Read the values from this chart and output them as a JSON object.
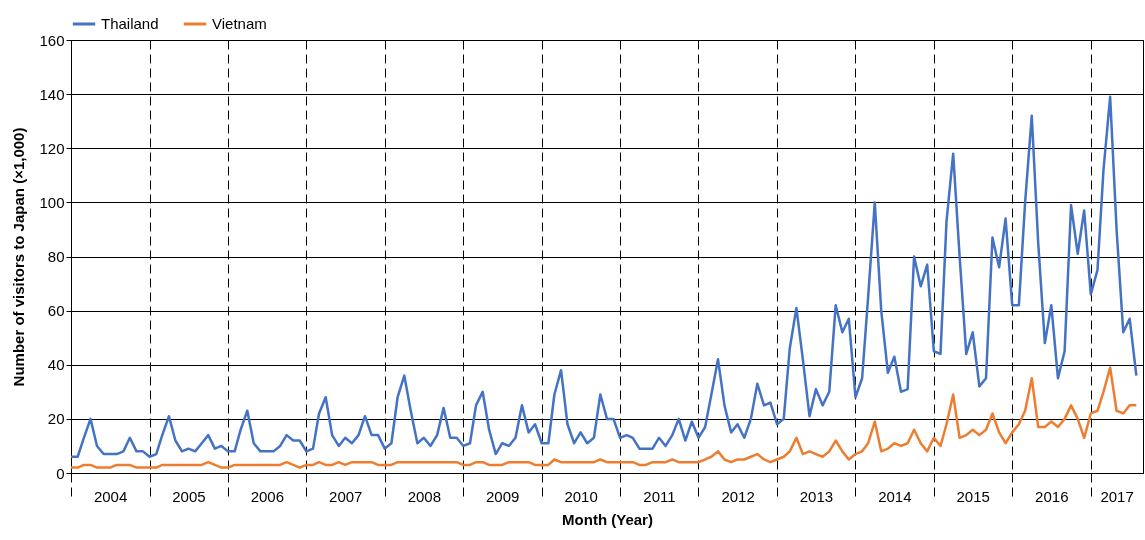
{
  "chart_data": {
    "type": "line",
    "xlabel": "Month (Year)",
    "ylabel": "Number of visitors to Japan (×1,000)",
    "x": [
      "2004-01",
      "2004-02",
      "2004-03",
      "2004-04",
      "2004-05",
      "2004-06",
      "2004-07",
      "2004-08",
      "2004-09",
      "2004-10",
      "2004-11",
      "2004-12",
      "2005-01",
      "2005-02",
      "2005-03",
      "2005-04",
      "2005-05",
      "2005-06",
      "2005-07",
      "2005-08",
      "2005-09",
      "2005-10",
      "2005-11",
      "2005-12",
      "2006-01",
      "2006-02",
      "2006-03",
      "2006-04",
      "2006-05",
      "2006-06",
      "2006-07",
      "2006-08",
      "2006-09",
      "2006-10",
      "2006-11",
      "2006-12",
      "2007-01",
      "2007-02",
      "2007-03",
      "2007-04",
      "2007-05",
      "2007-06",
      "2007-07",
      "2007-08",
      "2007-09",
      "2007-10",
      "2007-11",
      "2007-12",
      "2008-01",
      "2008-02",
      "2008-03",
      "2008-04",
      "2008-05",
      "2008-06",
      "2008-07",
      "2008-08",
      "2008-09",
      "2008-10",
      "2008-11",
      "2008-12",
      "2009-01",
      "2009-02",
      "2009-03",
      "2009-04",
      "2009-05",
      "2009-06",
      "2009-07",
      "2009-08",
      "2009-09",
      "2009-10",
      "2009-11",
      "2009-12",
      "2010-01",
      "2010-02",
      "2010-03",
      "2010-04",
      "2010-05",
      "2010-06",
      "2010-07",
      "2010-08",
      "2010-09",
      "2010-10",
      "2010-11",
      "2010-12",
      "2011-01",
      "2011-02",
      "2011-03",
      "2011-04",
      "2011-05",
      "2011-06",
      "2011-07",
      "2011-08",
      "2011-09",
      "2011-10",
      "2011-11",
      "2011-12",
      "2012-01",
      "2012-02",
      "2012-03",
      "2012-04",
      "2012-05",
      "2012-06",
      "2012-07",
      "2012-08",
      "2012-09",
      "2012-10",
      "2012-11",
      "2012-12",
      "2013-01",
      "2013-02",
      "2013-03",
      "2013-04",
      "2013-05",
      "2013-06",
      "2013-07",
      "2013-08",
      "2013-09",
      "2013-10",
      "2013-11",
      "2013-12",
      "2014-01",
      "2014-02",
      "2014-03",
      "2014-04",
      "2014-05",
      "2014-06",
      "2014-07",
      "2014-08",
      "2014-09",
      "2014-10",
      "2014-11",
      "2014-12",
      "2015-01",
      "2015-02",
      "2015-03",
      "2015-04",
      "2015-05",
      "2015-06",
      "2015-07",
      "2015-08",
      "2015-09",
      "2015-10",
      "2015-11",
      "2015-12",
      "2016-01",
      "2016-02",
      "2016-03",
      "2016-04",
      "2016-05",
      "2016-06",
      "2016-07",
      "2016-08",
      "2016-09",
      "2016-10",
      "2016-11",
      "2016-12",
      "2017-01",
      "2017-02",
      "2017-03",
      "2017-04",
      "2017-05",
      "2017-06",
      "2017-07",
      "2017-08"
    ],
    "series": [
      {
        "name": "Thailand",
        "color": "#4472c4",
        "values": [
          6,
          6,
          13,
          20,
          10,
          7,
          7,
          7,
          8,
          13,
          8,
          8,
          6,
          7,
          14,
          21,
          12,
          8,
          9,
          8,
          11,
          14,
          9,
          10,
          8,
          8,
          16,
          23,
          11,
          8,
          8,
          8,
          10,
          14,
          12,
          12,
          8,
          9,
          22,
          28,
          14,
          10,
          13,
          11,
          14,
          21,
          14,
          14,
          9,
          11,
          28,
          36,
          23,
          11,
          13,
          10,
          14,
          24,
          13,
          13,
          10,
          11,
          25,
          30,
          16,
          7,
          11,
          10,
          13,
          25,
          15,
          18,
          11,
          11,
          29,
          38,
          18,
          11,
          15,
          11,
          13,
          29,
          20,
          20,
          13,
          14,
          13,
          9,
          9,
          9,
          13,
          10,
          14,
          20,
          12,
          19,
          13,
          17,
          29,
          42,
          25,
          15,
          18,
          13,
          20,
          33,
          25,
          26,
          18,
          20,
          46,
          61,
          42,
          21,
          31,
          25,
          30,
          62,
          52,
          57,
          28,
          35,
          65,
          100,
          60,
          37,
          43,
          30,
          31,
          80,
          69,
          77,
          45,
          44,
          93,
          118,
          80,
          44,
          52,
          32,
          35,
          87,
          76,
          94,
          62,
          62,
          100,
          132,
          85,
          48,
          62,
          35,
          45,
          99,
          81,
          97,
          66,
          75,
          112,
          139,
          90,
          52,
          57,
          36
        ]
      },
      {
        "name": "Vietnam",
        "color": "#ed7d31",
        "values": [
          2,
          2,
          3,
          3,
          2,
          2,
          2,
          3,
          3,
          3,
          2,
          2,
          2,
          2,
          3,
          3,
          3,
          3,
          3,
          3,
          3,
          4,
          3,
          2,
          2,
          3,
          3,
          3,
          3,
          3,
          3,
          3,
          3,
          4,
          3,
          2,
          3,
          3,
          4,
          3,
          3,
          4,
          3,
          4,
          4,
          4,
          4,
          3,
          3,
          3,
          4,
          4,
          4,
          4,
          4,
          4,
          4,
          4,
          4,
          4,
          3,
          3,
          4,
          4,
          3,
          3,
          3,
          4,
          4,
          4,
          4,
          3,
          3,
          3,
          5,
          4,
          4,
          4,
          4,
          4,
          4,
          5,
          4,
          4,
          4,
          4,
          4,
          3,
          3,
          4,
          4,
          4,
          5,
          4,
          4,
          4,
          4,
          5,
          6,
          8,
          5,
          4,
          5,
          5,
          6,
          7,
          5,
          4,
          5,
          6,
          8,
          13,
          7,
          8,
          7,
          6,
          8,
          12,
          8,
          5,
          7,
          8,
          11,
          19,
          8,
          9,
          11,
          10,
          11,
          16,
          11,
          8,
          13,
          10,
          18,
          29,
          13,
          14,
          16,
          14,
          16,
          22,
          15,
          11,
          15,
          18,
          23,
          35,
          17,
          17,
          19,
          17,
          20,
          25,
          20,
          13,
          22,
          23,
          30,
          39,
          23,
          22,
          25,
          25
        ]
      }
    ],
    "xlim": [
      "2004-01",
      "2017-09"
    ],
    "xticks": [
      {
        "value": "2004-01",
        "label": null
      },
      {
        "value": "2004-07",
        "label": "2004"
      },
      {
        "value": "2005-01",
        "label": null
      },
      {
        "value": "2005-07",
        "label": "2005"
      },
      {
        "value": "2006-01",
        "label": null
      },
      {
        "value": "2006-07",
        "label": "2006"
      },
      {
        "value": "2007-01",
        "label": null
      },
      {
        "value": "2007-07",
        "label": "2007"
      },
      {
        "value": "2008-01",
        "label": null
      },
      {
        "value": "2008-07",
        "label": "2008"
      },
      {
        "value": "2009-01",
        "label": null
      },
      {
        "value": "2009-07",
        "label": "2009"
      },
      {
        "value": "2010-01",
        "label": null
      },
      {
        "value": "2010-07",
        "label": "2010"
      },
      {
        "value": "2011-01",
        "label": null
      },
      {
        "value": "2011-07",
        "label": "2011"
      },
      {
        "value": "2012-01",
        "label": null
      },
      {
        "value": "2012-07",
        "label": "2012"
      },
      {
        "value": "2013-01",
        "label": null
      },
      {
        "value": "2013-07",
        "label": "2013"
      },
      {
        "value": "2014-01",
        "label": null
      },
      {
        "value": "2014-07",
        "label": "2014"
      },
      {
        "value": "2015-01",
        "label": null
      },
      {
        "value": "2015-07",
        "label": "2015"
      },
      {
        "value": "2016-01",
        "label": null
      },
      {
        "value": "2016-07",
        "label": "2016"
      },
      {
        "value": "2017-01",
        "label": null
      },
      {
        "value": "2017-05",
        "label": "2017"
      }
    ],
    "ylim": [
      0,
      160
    ],
    "yticks": [
      0,
      20,
      40,
      60,
      80,
      100,
      120,
      140,
      160
    ],
    "grid": true,
    "legend": "top left",
    "marker": "none",
    "line_style": "solid"
  }
}
